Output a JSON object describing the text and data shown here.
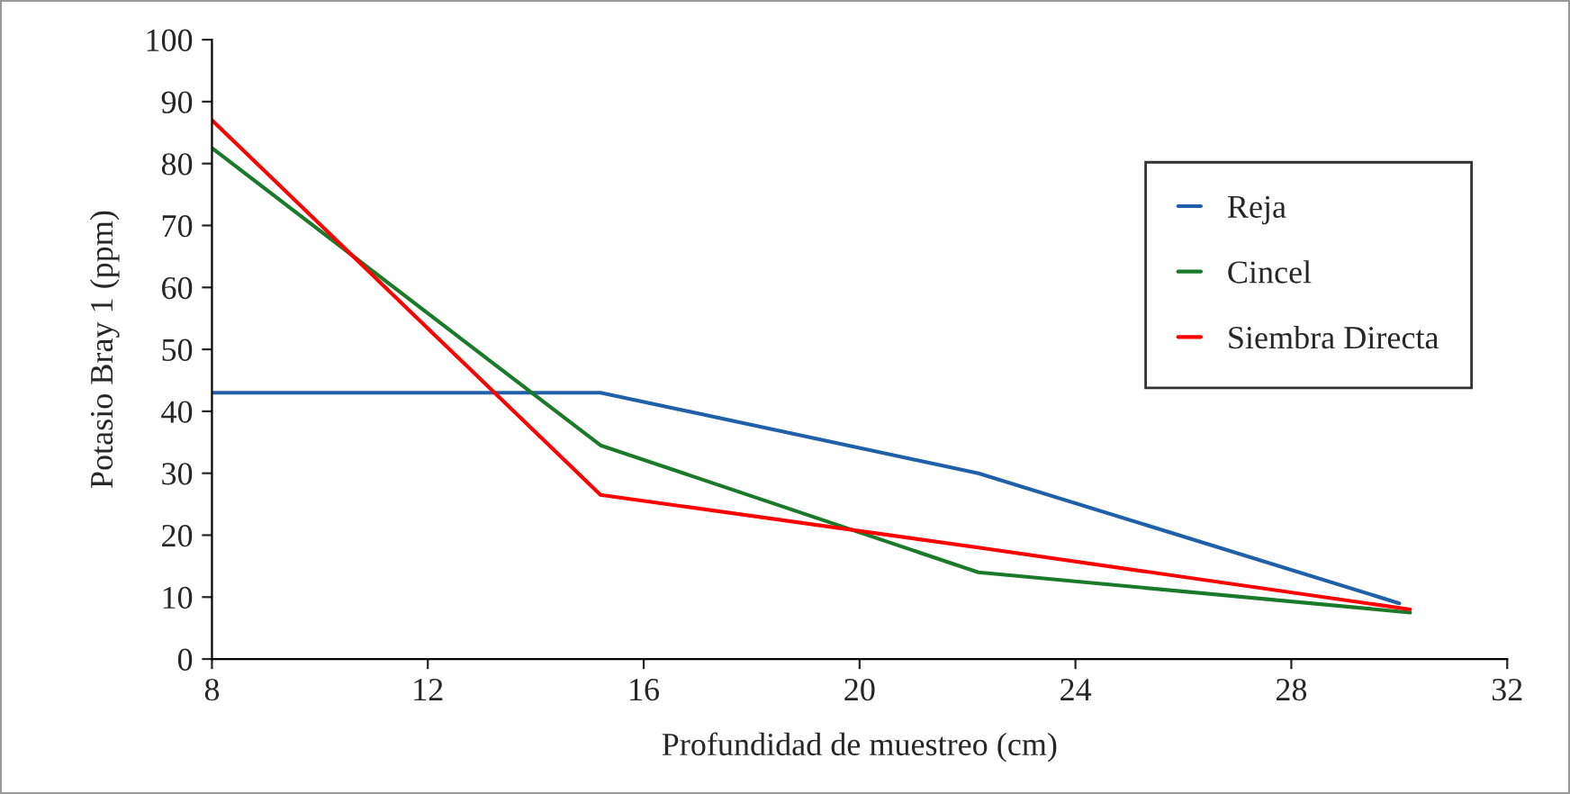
{
  "chart_data": {
    "type": "line",
    "xlabel": "Profundidad de muestreo (cm)",
    "ylabel": "Potasio Bray 1 (ppm)",
    "xlim": [
      8,
      32
    ],
    "xticks": [
      8,
      12,
      16,
      20,
      24,
      28,
      32
    ],
    "ylim": [
      0,
      100
    ],
    "yticks": [
      0,
      10,
      20,
      30,
      40,
      50,
      60,
      70,
      80,
      90,
      100
    ],
    "grid": false,
    "legend": "right",
    "marker": "none",
    "line_style": "solid",
    "series": [
      {
        "name": "Reja",
        "color": "#2060a8",
        "x": [
          8,
          15.2,
          22.2,
          30
        ],
        "values": [
          43,
          43,
          30,
          9
        ]
      },
      {
        "name": "Cincel",
        "color": "#1a7a2a",
        "x": [
          8,
          15.2,
          22.2,
          30.2
        ],
        "values": [
          82.5,
          34.5,
          14,
          7.5
        ]
      },
      {
        "name": "Siembra Directa",
        "color": "#ff0000",
        "x": [
          8,
          15.2,
          22.2,
          30.2
        ],
        "values": [
          87,
          26.5,
          18,
          8
        ]
      }
    ]
  }
}
